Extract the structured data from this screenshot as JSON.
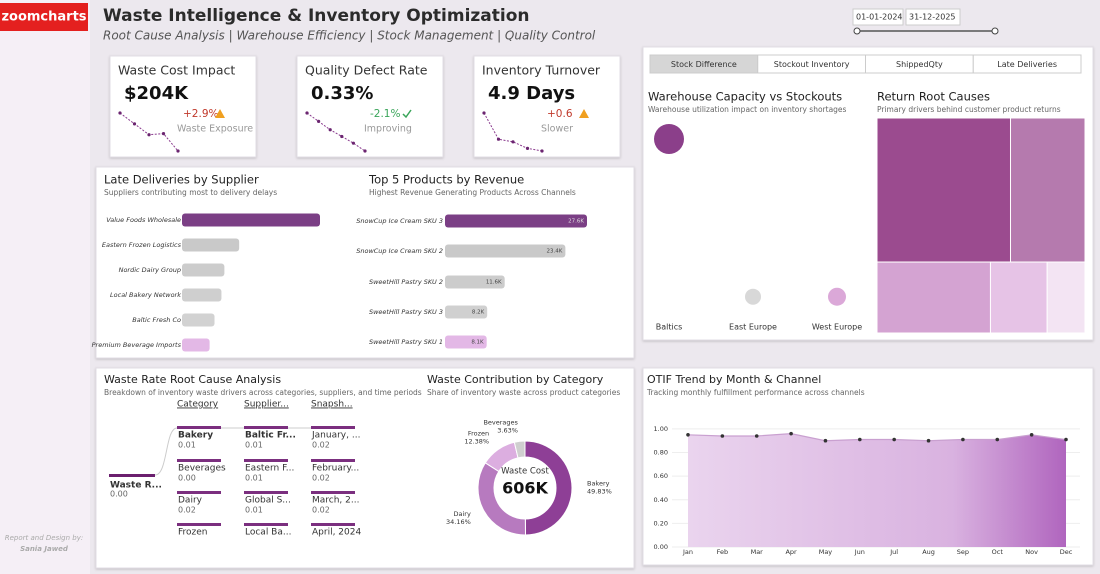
{
  "header": {
    "logo": "zoomcharts",
    "title": "Waste Intelligence & Inventory Optimization",
    "subtitle": "Root Cause Analysis | Warehouse Efficiency | Stock Management | Quality Control",
    "date_start": "01-01-2024",
    "date_end": "31-12-2025"
  },
  "credit": {
    "line1": "Report and Design by:",
    "line2": "Sania Jawed"
  },
  "kpis": [
    {
      "title": "Waste Cost Impact",
      "value": "$204K",
      "change": "+2.9%",
      "status": "Waste Exposure",
      "color": "#c0392b",
      "icon": "warning",
      "trend": [
        10,
        8,
        6,
        6.2,
        3
      ]
    },
    {
      "title": "Quality Defect Rate",
      "value": "0.33%",
      "change": "-2.1%",
      "status": "Improving",
      "color": "#3aa55a",
      "icon": "check",
      "trend": [
        9,
        7.5,
        6,
        4.8,
        3.6,
        2.2
      ]
    },
    {
      "title": "Inventory Turnover",
      "value": "4.9 Days",
      "change": "+0.6",
      "status": "Slower",
      "color": "#c0392b",
      "icon": "warning",
      "trend": [
        9,
        5,
        4.6,
        3.6,
        3.2
      ]
    }
  ],
  "late_deliveries": {
    "type": "bar",
    "title": "Late Deliveries by Supplier",
    "subtitle": "Suppliers contributing most to delivery delays",
    "categories": [
      "Value Foods Wholesale",
      "Eastern Frozen Logistics",
      "Nordic Dairy Group",
      "Local Bakery Network",
      "Baltic Fresh Co",
      "Premium Beverage Imports"
    ],
    "values": [
      14,
      5.8,
      4.3,
      4,
      3.3,
      2.8
    ],
    "colors": [
      "#7b3f85",
      "#c9c9c9",
      "#cccccc",
      "#cfcfcf",
      "#d2d2d2",
      "#e3b8e6"
    ]
  },
  "top_products": {
    "type": "bar",
    "title": "Top 5 Products by Revenue",
    "subtitle": "Highest Revenue Generating Products Across Channels",
    "categories": [
      "SnowCup Ice Cream SKU 3",
      "SnowCup Ice Cream SKU 2",
      "SweetHill Pastry SKU 2",
      "SweetHill Pastry SKU 3",
      "SweetHill Pastry SKU 1"
    ],
    "values": [
      27600,
      23400,
      11600,
      8200,
      8100
    ],
    "value_labels": [
      "27.6K",
      "23.4K",
      "11.6K",
      "8.2K",
      "8.1K"
    ],
    "colors": [
      "#7b3f85",
      "#c9c9c9",
      "#cccccc",
      "#d0d0d0",
      "#e3b8e6"
    ]
  },
  "tabs": {
    "items": [
      "Stock Difference",
      "Stockout Inventory",
      "ShippedQty",
      "Late Deliveries"
    ],
    "active": 0
  },
  "warehouse": {
    "type": "scatter",
    "title": "Warehouse Capacity vs Stockouts",
    "subtitle": "Warehouse utilization impact on inventory shortages",
    "categories": [
      "Baltics",
      "East Europe",
      "West Europe"
    ],
    "values": [
      0.9,
      0.07,
      0.07
    ],
    "sizes": [
      225,
      64,
      81
    ],
    "colors": [
      "#8b3f8a",
      "#d8d8d8",
      "#dba8d8"
    ],
    "ylim": [
      0,
      1
    ]
  },
  "root_causes": {
    "type": "treemap",
    "title": "Return Root Causes",
    "subtitle": "Primary drivers behind customer product returns",
    "values": [
      43,
      24,
      18,
      9,
      6
    ],
    "colors": [
      "#9b4b8f",
      "#b57aae",
      "#d4a3d2",
      "#e6c3e6",
      "#f3e4f3"
    ]
  },
  "decomposition": {
    "title": "Waste Rate Root Cause Analysis",
    "subtitle": "Breakdown of inventory waste drivers across categories, suppliers, and time periods",
    "root": {
      "label": "Waste R...",
      "value": "0.00"
    },
    "columns": [
      {
        "header": "Category",
        "selected": 0,
        "items": [
          {
            "label": "Bakery",
            "value": "0.01"
          },
          {
            "label": "Beverages",
            "value": "0.00"
          },
          {
            "label": "Dairy",
            "value": "0.02"
          },
          {
            "label": "Frozen"
          }
        ]
      },
      {
        "header": "Supplier...",
        "selected": 0,
        "items": [
          {
            "label": "Baltic Fr...",
            "value": "0.01"
          },
          {
            "label": "Eastern F...",
            "value": "0.01"
          },
          {
            "label": "Global S...",
            "value": "0.01"
          },
          {
            "label": "Local Ba..."
          }
        ]
      },
      {
        "header": "Snapsh...",
        "items": [
          {
            "label": "January, ...",
            "value": "0.02"
          },
          {
            "label": "February...",
            "value": "0.02"
          },
          {
            "label": "March, 2...",
            "value": "0.02"
          },
          {
            "label": "April, 2024"
          }
        ]
      }
    ]
  },
  "waste_contribution": {
    "type": "pie",
    "title": "Waste Contribution by Category",
    "subtitle": "Share of inventory waste across product categories",
    "center_label": "Waste Cost",
    "center_value": "606K",
    "categories": [
      "Bakery",
      "Dairy",
      "Frozen",
      "Beverages"
    ],
    "values": [
      49.83,
      34.16,
      12.38,
      3.63
    ],
    "value_labels": [
      "49.83%",
      "34.16%",
      "12.38%",
      "3.63%"
    ],
    "colors": [
      "#8e3f96",
      "#b77abf",
      "#dcaee0",
      "#cfcfcf"
    ]
  },
  "otif": {
    "type": "area",
    "title": "OTIF Trend by Month & Channel",
    "subtitle": "Tracking monthly fulfillment performance across channels",
    "categories": [
      "Jan",
      "Feb",
      "Mar",
      "Apr",
      "May",
      "Jun",
      "Jul",
      "Aug",
      "Sep",
      "Oct",
      "Nov",
      "Dec"
    ],
    "values": [
      0.95,
      0.94,
      0.94,
      0.96,
      0.9,
      0.91,
      0.91,
      0.9,
      0.91,
      0.91,
      0.95,
      0.91
    ],
    "ylim": [
      0,
      1.05
    ],
    "yticks": [
      {
        "value": 0,
        "label": "0.00"
      },
      {
        "value": 0.2,
        "label": "0.20"
      },
      {
        "value": 0.4,
        "label": "0.40"
      },
      {
        "value": 0.6,
        "label": "0.60"
      },
      {
        "value": 0.8,
        "label": "0.80"
      },
      {
        "value": 1,
        "label": "1.00"
      }
    ],
    "color": "#a855b5"
  }
}
